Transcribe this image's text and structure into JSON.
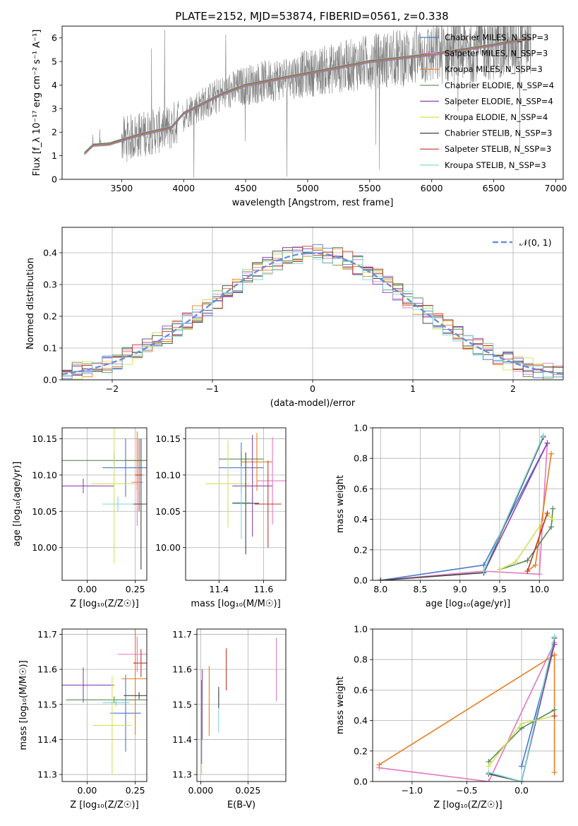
{
  "figure": {
    "title": "PLATE=2152, MJD=53874, FIBERID=0561, z=0.338"
  },
  "chart_data": [
    {
      "id": "spectrum",
      "type": "line",
      "xlabel": "wavelength [Angstrom, rest frame]",
      "ylabel": "Flux [f_λ 10⁻¹⁷ erg cm⁻² s⁻¹ A⁻¹]",
      "xlim": [
        3020,
        7060
      ],
      "ylim": [
        0,
        6.5
      ],
      "xticks": [
        3500,
        4000,
        4500,
        5000,
        5500,
        6000,
        6500,
        7000
      ],
      "yticks": [
        0,
        1,
        2,
        3,
        4,
        5,
        6
      ],
      "grid": false,
      "legend_position": "top-right",
      "data_range": [
        3200,
        6800
      ],
      "gap": [
        3960,
        3990
      ],
      "legend": [
        {
          "name": "Chabrier MILES, N_SSP=3",
          "color": "#4878cf"
        },
        {
          "name": "Salpeter MILES, N_SSP=3",
          "color": "#e377c2"
        },
        {
          "name": "Kroupa MILES, N_SSP=3",
          "color": "#e67e22"
        },
        {
          "name": "Chabrier ELODIE, N_SSP=4",
          "color": "#5a8a5a"
        },
        {
          "name": "Salpeter ELODIE, N_SSP=4",
          "color": "#8e44ad"
        },
        {
          "name": "Kroupa ELODIE, N_SSP=4",
          "color": "#d4e157"
        },
        {
          "name": "Chabrier STELIB, N_SSP=3",
          "color": "#444444"
        },
        {
          "name": "Salpeter STELIB, N_SSP=3",
          "color": "#c0392b"
        },
        {
          "name": "Kroupa STELIB, N_SSP=3",
          "color": "#7fd3d8"
        }
      ],
      "model_curve": {
        "x": [
          3200,
          3270,
          3400,
          3650,
          3900,
          4000,
          4300,
          4500,
          4800,
          5000,
          5500,
          6000,
          6500,
          6800
        ],
        "y": [
          1.1,
          1.45,
          1.5,
          1.9,
          2.2,
          2.8,
          3.6,
          4.0,
          4.3,
          4.5,
          5.0,
          5.3,
          5.7,
          6.0
        ]
      },
      "data_color": "#808080"
    },
    {
      "id": "residuals",
      "type": "line",
      "xlabel": "(data-model)/error",
      "ylabel": "Normed distribution",
      "xlim": [
        -2.5,
        2.5
      ],
      "ylim": [
        0,
        0.48
      ],
      "xticks": [
        -2,
        -1,
        0,
        1,
        2
      ],
      "yticks": [
        0.0,
        0.1,
        0.2,
        0.3,
        0.4
      ],
      "grid": true,
      "legend_position": "top-right",
      "reference": {
        "name": "𝒩(0, 1)",
        "color": "#6a8fd8"
      },
      "bin_width": 0.1
    },
    {
      "id": "age_vs_Z",
      "type": "scatter",
      "xlabel": "Z [log₁₀(Z/Z☉)]",
      "ylabel": "age  [log₁₀(age/yr)]",
      "xlim": [
        -0.13,
        0.31
      ],
      "ylim": [
        9.955,
        10.165
      ],
      "xticks": [
        0.0,
        0.25
      ],
      "yticks": [
        10.0,
        10.05,
        10.1,
        10.15
      ],
      "grid": true,
      "points": [
        {
          "color": "#4878cf",
          "x": 0.2,
          "xerr": 0.12,
          "y": 10.11,
          "yerr": 0.04
        },
        {
          "color": "#e377c2",
          "x": 0.26,
          "xerr": 0.03,
          "y": 10.09,
          "yerr": 0.06
        },
        {
          "color": "#e67e22",
          "x": 0.26,
          "xerr": 0.06,
          "y": 10.12,
          "yerr": 0.04
        },
        {
          "color": "#5a8a5a",
          "x": 0.14,
          "xerr": 0.27,
          "y": 10.12,
          "yerr": 0.01
        },
        {
          "color": "#8e44ad",
          "x": -0.02,
          "xerr": 0.16,
          "y": 10.085,
          "yerr": 0.01
        },
        {
          "color": "#d4e157",
          "x": 0.14,
          "xerr": 0.12,
          "y": 10.088,
          "yerr": 0.11
        },
        {
          "color": "#444444",
          "x": 0.28,
          "xerr": 0.2,
          "y": 10.06,
          "yerr": 0.09
        },
        {
          "color": "#c0392b",
          "x": 0.27,
          "xerr": 0.02,
          "y": 10.1,
          "yerr": 0.05
        },
        {
          "color": "#7fd3d8",
          "x": 0.16,
          "xerr": 0.08,
          "y": 10.06,
          "yerr": 0.01
        }
      ]
    },
    {
      "id": "age_vs_mass",
      "type": "scatter",
      "xlabel": "mass [log₁₀(M/M☉)]",
      "ylabel": "",
      "xlim": [
        11.25,
        11.7
      ],
      "ylim": [
        9.955,
        10.165
      ],
      "xticks": [
        11.4,
        11.6
      ],
      "yticks": [
        10.0,
        10.05,
        10.1,
        10.15
      ],
      "grid": true,
      "points": [
        {
          "color": "#4878cf",
          "x": 11.5,
          "xerr": 0.1,
          "y": 10.11,
          "yerr": 0.035
        },
        {
          "color": "#e377c2",
          "x": 11.64,
          "xerr": 0.07,
          "y": 10.092,
          "yerr": 0.06
        },
        {
          "color": "#e67e22",
          "x": 11.57,
          "xerr": 0.07,
          "y": 10.118,
          "yerr": 0.04
        },
        {
          "color": "#5a8a5a",
          "x": 11.5,
          "xerr": 0.1,
          "y": 10.122,
          "yerr": 0.01
        },
        {
          "color": "#8e44ad",
          "x": 11.55,
          "xerr": 0.09,
          "y": 10.085,
          "yerr": 0.07
        },
        {
          "color": "#d4e157",
          "x": 11.44,
          "xerr": 0.1,
          "y": 10.088,
          "yerr": 0.06
        },
        {
          "color": "#444444",
          "x": 11.52,
          "xerr": 0.06,
          "y": 10.061,
          "yerr": 0.07
        },
        {
          "color": "#c0392b",
          "x": 11.62,
          "xerr": 0.06,
          "y": 10.06,
          "yerr": 0.06
        },
        {
          "color": "#7fd3d8",
          "x": 11.5,
          "xerr": 0.04,
          "y": 10.062,
          "yerr": 0.05
        }
      ]
    },
    {
      "id": "weight_vs_age",
      "type": "line",
      "xlabel": "age  [log₁₀(age/yr)]",
      "ylabel": "mass weight",
      "xlim": [
        7.9,
        10.3
      ],
      "ylim": [
        0,
        1.0
      ],
      "xticks": [
        8.0,
        8.5,
        9.0,
        9.5,
        10.0
      ],
      "yticks": [
        0.0,
        0.2,
        0.4,
        0.6,
        0.8,
        1.0
      ],
      "grid": true,
      "series": [
        {
          "color": "#4878cf",
          "x": [
            8.0,
            9.3,
            10.1
          ],
          "y": [
            0.0,
            0.1,
            0.9
          ]
        },
        {
          "color": "#e377c2",
          "x": [
            8.0,
            9.3,
            10.0,
            10.1
          ],
          "y": [
            0.0,
            0.06,
            0.04,
            0.9
          ]
        },
        {
          "color": "#e67e22",
          "x": [
            9.85,
            9.95,
            10.15
          ],
          "y": [
            0.06,
            0.1,
            0.83
          ]
        },
        {
          "color": "#5a8a5a",
          "x": [
            9.5,
            9.85,
            10.15,
            10.17
          ],
          "y": [
            0.07,
            0.13,
            0.35,
            0.47
          ]
        },
        {
          "color": "#8e44ad",
          "x": [
            9.3,
            10.1
          ],
          "y": [
            0.05,
            0.9
          ]
        },
        {
          "color": "#d4e157",
          "x": [
            9.5,
            9.7,
            10.1,
            10.17
          ],
          "y": [
            0.07,
            0.12,
            0.43,
            0.4
          ]
        },
        {
          "color": "#444444",
          "x": [
            8.0,
            9.3,
            10.05
          ],
          "y": [
            0.0,
            0.05,
            0.94
          ]
        },
        {
          "color": "#c0392b",
          "x": [
            9.85,
            10.1
          ],
          "y": [
            0.06,
            0.44
          ]
        },
        {
          "color": "#7fd3d8",
          "x": [
            9.3,
            10.05
          ],
          "y": [
            0.06,
            0.95
          ]
        }
      ]
    },
    {
      "id": "mass_vs_Z",
      "type": "scatter",
      "xlabel": "Z [log₁₀(Z/Z☉)]",
      "ylabel": "mass [log₁₀(M/M☉)]",
      "xlim": [
        -0.13,
        0.31
      ],
      "ylim": [
        11.28,
        11.715
      ],
      "xticks": [
        0.0,
        0.25
      ],
      "yticks": [
        11.3,
        11.4,
        11.5,
        11.6,
        11.7
      ],
      "grid": true,
      "points": [
        {
          "color": "#4878cf",
          "x": 0.2,
          "xerr": 0.08,
          "y": 11.475,
          "yerr": 0.11
        },
        {
          "color": "#e377c2",
          "x": 0.26,
          "xerr": 0.1,
          "y": 11.643,
          "yerr": 0.05
        },
        {
          "color": "#e67e22",
          "x": 0.25,
          "xerr": 0.07,
          "y": 11.573,
          "yerr": 0.16
        },
        {
          "color": "#5a8a5a",
          "x": 0.14,
          "xerr": 0.25,
          "y": 11.513,
          "yerr": 0.01
        },
        {
          "color": "#8e44ad",
          "x": -0.02,
          "xerr": 0.16,
          "y": 11.555,
          "yerr": 0.05
        },
        {
          "color": "#d4e157",
          "x": 0.13,
          "xerr": 0.1,
          "y": 11.44,
          "yerr": 0.14
        },
        {
          "color": "#444444",
          "x": 0.27,
          "xerr": 0.08,
          "y": 11.525,
          "yerr": 0.01
        },
        {
          "color": "#c0392b",
          "x": 0.28,
          "xerr": 0.04,
          "y": 11.618,
          "yerr": 0.04
        },
        {
          "color": "#7fd3d8",
          "x": 0.15,
          "xerr": 0.07,
          "y": 11.505,
          "yerr": 0.01
        }
      ]
    },
    {
      "id": "mass_vs_ebv",
      "type": "scatter",
      "xlabel": "E(B-V)",
      "ylabel": "",
      "xlim": [
        -0.002,
        0.045
      ],
      "ylim": [
        11.28,
        11.715
      ],
      "xticks": [
        0.0,
        0.025
      ],
      "yticks": [
        11.3,
        11.4,
        11.5,
        11.6,
        11.7
      ],
      "grid": true,
      "points": [
        {
          "color": "#e377c2",
          "x": 0.04,
          "y": 11.6,
          "yerr": 0.09
        },
        {
          "color": "#e67e22",
          "x": 0.0045,
          "y": 11.51,
          "yerr": 0.1
        },
        {
          "color": "#c0392b",
          "x": 0.0135,
          "y": 11.6,
          "yerr": 0.06
        },
        {
          "color": "#7fd3d8",
          "x": 0.0095,
          "y": 11.48,
          "yerr": 0.06
        },
        {
          "color": "#444444",
          "x": 0.0095,
          "y": 11.52,
          "yerr": 0.03
        },
        {
          "color": "#8e44ad",
          "x": 0.0008,
          "y": 11.5,
          "yerr": 0.1
        },
        {
          "color": "#d4e157",
          "x": 0.0005,
          "y": 11.4,
          "yerr": 0.1
        },
        {
          "color": "#4878cf",
          "x": 0.0005,
          "y": 11.45,
          "yerr": 0.12
        }
      ]
    },
    {
      "id": "weight_vs_Z",
      "type": "line",
      "xlabel": "Z [log₁₀(Z/Z☉)]",
      "ylabel": "mass weight",
      "xlim": [
        -1.36,
        0.38
      ],
      "ylim": [
        0,
        1.0
      ],
      "xticks": [
        -1.0,
        -0.5,
        0.0
      ],
      "yticks": [
        0.0,
        0.2,
        0.4,
        0.6,
        0.8,
        1.0
      ],
      "grid": true,
      "series": [
        {
          "color": "#4878cf",
          "x": [
            0.0,
            0.3
          ],
          "y": [
            0.1,
            0.9
          ]
        },
        {
          "color": "#e377c2",
          "x": [
            -1.3,
            -0.3,
            0.3
          ],
          "y": [
            0.09,
            0.0,
            0.91
          ]
        },
        {
          "color": "#e67e22",
          "x": [
            -1.3,
            0.3,
            0.3,
            0.3
          ],
          "y": [
            0.11,
            0.83,
            0.06,
            0.83
          ]
        },
        {
          "color": "#5a8a5a",
          "x": [
            -0.3,
            0.0,
            0.3
          ],
          "y": [
            0.13,
            0.35,
            0.47
          ]
        },
        {
          "color": "#8e44ad",
          "x": [
            0.0,
            0.3
          ],
          "y": [
            0.0,
            0.9
          ]
        },
        {
          "color": "#d4e157",
          "x": [
            -0.3,
            0.0,
            0.3
          ],
          "y": [
            0.1,
            0.38,
            0.43
          ]
        },
        {
          "color": "#444444",
          "x": [
            -0.3,
            0.0,
            0.3
          ],
          "y": [
            0.05,
            0.0,
            0.94
          ]
        },
        {
          "color": "#c0392b",
          "x": [
            0.3
          ],
          "y": [
            0.43
          ]
        },
        {
          "color": "#7fd3d8",
          "x": [
            -0.3,
            0.0,
            0.3
          ],
          "y": [
            0.06,
            0.0,
            0.95
          ]
        }
      ]
    }
  ]
}
